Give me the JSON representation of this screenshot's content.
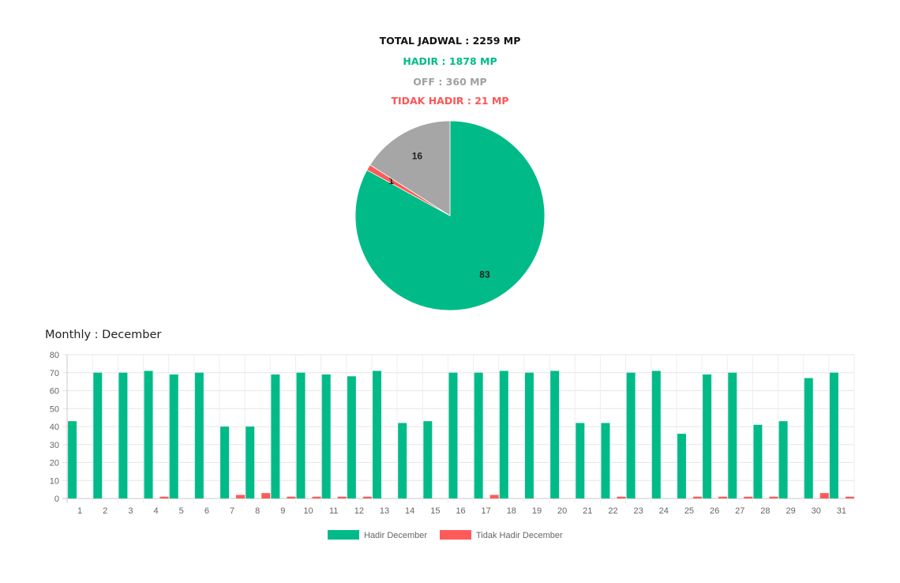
{
  "summary": {
    "total": "TOTAL JADWAL : 2259 MP",
    "hadir": "HADIR : 1878 MP",
    "off": "OFF : 360 MP",
    "tidak_hadir": "TIDAK HADIR : 21 MP"
  },
  "colors": {
    "hadir": "#00bb88",
    "off": "#a6a6a6",
    "tidak_hadir": "#ff5a5a",
    "total": "#111111"
  },
  "chart_data": [
    {
      "type": "pie",
      "slices": [
        {
          "label": "83",
          "value": 83,
          "color": "#00bb88"
        },
        {
          "label": "1",
          "value": 1,
          "color": "#ff5a5a"
        },
        {
          "label": "16",
          "value": 16,
          "color": "#a6a6a6"
        }
      ]
    },
    {
      "type": "bar",
      "title": "Monthly : December",
      "categories": [
        "1",
        "2",
        "3",
        "4",
        "5",
        "6",
        "7",
        "8",
        "9",
        "10",
        "11",
        "12",
        "13",
        "14",
        "15",
        "16",
        "17",
        "18",
        "19",
        "20",
        "21",
        "22",
        "23",
        "24",
        "25",
        "26",
        "27",
        "28",
        "29",
        "30",
        "31"
      ],
      "series": [
        {
          "name": "Hadir December",
          "color": "#00bb88",
          "values": [
            43,
            70,
            70,
            71,
            69,
            70,
            40,
            40,
            69,
            70,
            69,
            68,
            71,
            42,
            43,
            70,
            70,
            71,
            70,
            71,
            42,
            42,
            70,
            71,
            36,
            69,
            70,
            41,
            43,
            67,
            70
          ]
        },
        {
          "name": "Tidak Hadir December",
          "color": "#ff5a5a",
          "values": [
            0,
            0,
            0,
            1,
            0,
            0,
            2,
            3,
            1,
            1,
            1,
            1,
            0,
            0,
            0,
            0,
            2,
            0,
            0,
            0,
            0,
            1,
            0,
            0,
            1,
            1,
            1,
            1,
            0,
            3,
            1
          ]
        }
      ],
      "ylim": [
        0,
        80
      ],
      "yticks": [
        0,
        10,
        20,
        30,
        40,
        50,
        60,
        70,
        80
      ],
      "grid": true,
      "legend": "bottom"
    }
  ]
}
